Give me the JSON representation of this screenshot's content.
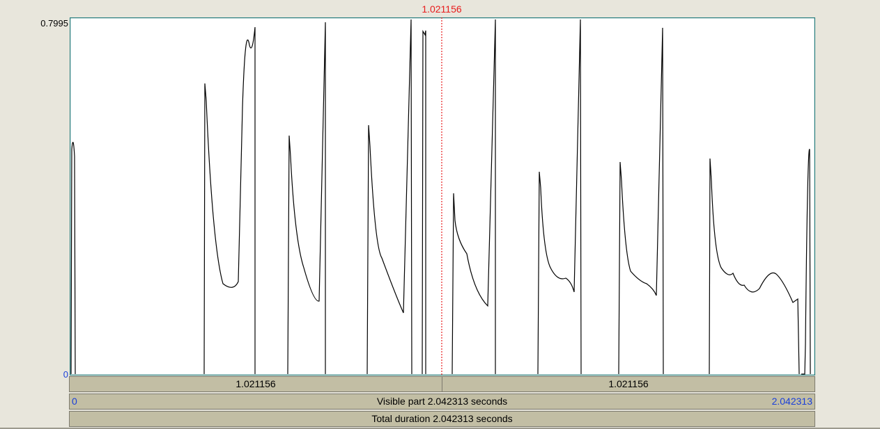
{
  "cursor": {
    "time_label": "1.021156",
    "color": "#e81b1b"
  },
  "y_axis": {
    "max_label": "0.7995",
    "min_label": "0"
  },
  "selection_bar": {
    "left_label": "1.021156",
    "right_label": "1.021156"
  },
  "visible_bar": {
    "start_label": "0",
    "center_label": "Visible part 2.042313 seconds",
    "end_label": "2.042313"
  },
  "total_bar": {
    "label": "Total duration 2.042313 seconds"
  },
  "colors": {
    "background": "#e8e6dc",
    "plot_border": "#2a7f7f",
    "curve": "#000000",
    "bar_fill": "#c2bea4",
    "link_blue": "#1a3fd9"
  }
}
